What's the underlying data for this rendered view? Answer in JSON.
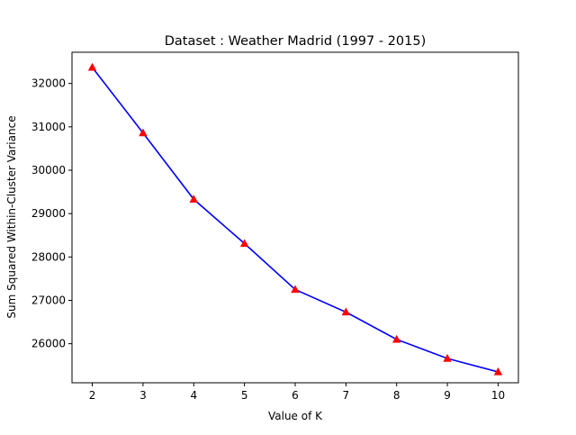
{
  "chart_data": {
    "type": "line",
    "title": "Dataset : Weather Madrid (1997 - 2015)",
    "xlabel": "Value of K",
    "ylabel": "Sum Squared Within-Cluster Variance",
    "x": [
      2,
      3,
      4,
      5,
      6,
      7,
      8,
      9,
      10
    ],
    "series": [
      {
        "values": [
          32370,
          30860,
          29330,
          28310,
          27250,
          26730,
          26100,
          25660,
          25350
        ],
        "line_color": "#0000ff",
        "marker": "triangle",
        "marker_color": "#ff0000"
      }
    ],
    "xlim": [
      1.6,
      10.4
    ],
    "ylim": [
      25100,
      32720
    ],
    "xticks": [
      "2",
      "3",
      "4",
      "5",
      "6",
      "7",
      "8",
      "9",
      "10"
    ],
    "yticks": [
      "26000",
      "27000",
      "28000",
      "29000",
      "30000",
      "31000",
      "32000"
    ],
    "grid": false
  }
}
